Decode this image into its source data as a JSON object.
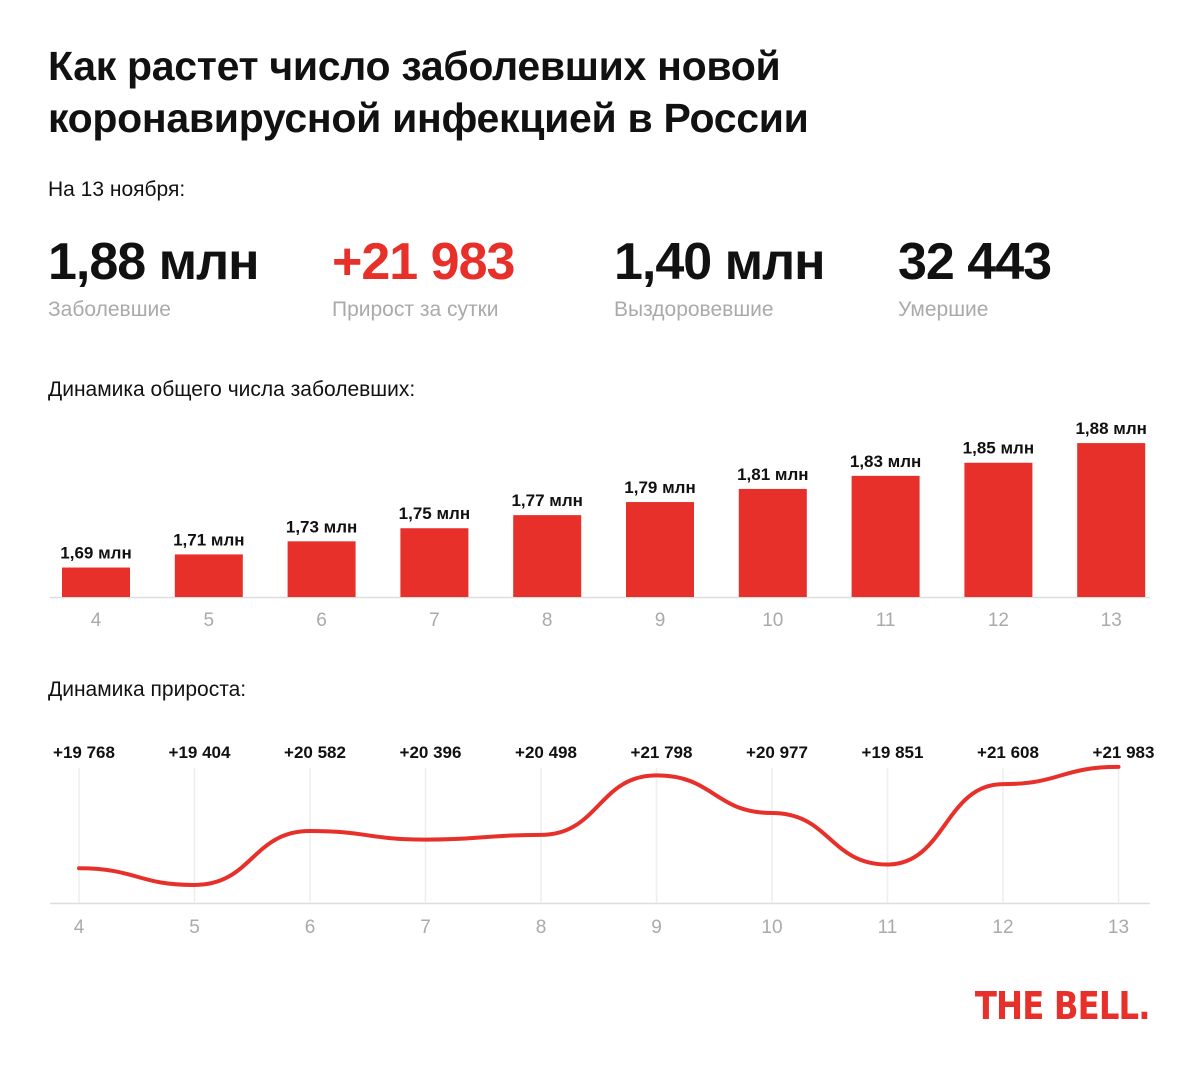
{
  "title_line1": "Как растет число заболевших новой",
  "title_line2": "коронавирусной инфекцией в России",
  "date_label": "На 13 ноября:",
  "stats": [
    {
      "value": "1,88 млн",
      "label": "Заболевшие",
      "color": "#111111"
    },
    {
      "value": "+21 983",
      "label": "Прирост за сутки",
      "color": "#e8302a"
    },
    {
      "value": "1,40 млн",
      "label": "Выздоровевшие",
      "color": "#111111"
    },
    {
      "value": "32 443",
      "label": "Умершие",
      "color": "#111111"
    }
  ],
  "logo": "THE BELL.",
  "accent": "#e8302a",
  "chart_data": [
    {
      "type": "bar",
      "title": "Динамика общего числа заболевших:",
      "categories": [
        "4",
        "5",
        "6",
        "7",
        "8",
        "9",
        "10",
        "11",
        "12",
        "13"
      ],
      "values": [
        1.69,
        1.71,
        1.73,
        1.75,
        1.77,
        1.79,
        1.81,
        1.83,
        1.85,
        1.88
      ],
      "data_labels": [
        "1,69 млн",
        "1,71 млн",
        "1,73 млн",
        "1,75 млн",
        "1,77 млн",
        "1,79 млн",
        "1,81 млн",
        "1,83 млн",
        "1,85 млн",
        "1,88 млн"
      ],
      "unit": "млн",
      "ylim": [
        1.645,
        1.9
      ],
      "grid": false,
      "color": "#e8302a"
    },
    {
      "type": "line",
      "title": "Динамика прироста:",
      "categories": [
        "4",
        "5",
        "6",
        "7",
        "8",
        "9",
        "10",
        "11",
        "12",
        "13"
      ],
      "values": [
        19768,
        19404,
        20582,
        20396,
        20498,
        21798,
        20977,
        19851,
        21608,
        21983
      ],
      "data_labels": [
        "+19 768",
        "+19 404",
        "+20 582",
        "+20 396",
        "+20 498",
        "+21 798",
        "+20 977",
        "+19 851",
        "+21 608",
        "+21 983"
      ],
      "ylim": [
        19010,
        22790
      ],
      "grid": "vertical",
      "color": "#e8302a"
    }
  ]
}
